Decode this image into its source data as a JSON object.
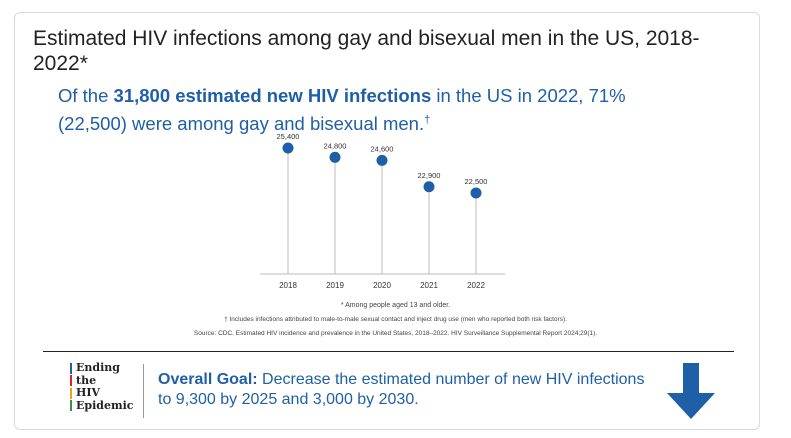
{
  "header": {
    "title": "Estimated HIV infections among gay and bisexual men in the US, 2018-2022*"
  },
  "headline": {
    "prefix": "Of the ",
    "bold": "31,800 estimated new HIV infections",
    "suffix": " in the US in 2022, 71% (22,500) were among gay and bisexual men.",
    "dagger": "†"
  },
  "chart_data": {
    "type": "scatter",
    "style": "lollipop",
    "categories": [
      "2018",
      "2019",
      "2020",
      "2021",
      "2022"
    ],
    "values": [
      25400,
      24800,
      24600,
      22900,
      22500
    ],
    "labels": [
      "25,400",
      "24,800",
      "24,600",
      "22,900",
      "22,500"
    ],
    "color": "#1f5fa8",
    "xlabel": "",
    "ylabel": "",
    "grid": false
  },
  "notes": {
    "age": "* Among people aged 13 and older.",
    "dagger": "† Includes infections attributed to male-to-male sexual contact and inject drug use (men who reported both risk factors).",
    "source": "Source: CDC. Estimated HIV incidence and prevalence in the United States, 2018–2022. HIV Surveillance Supplemental Report 2024;29(1)."
  },
  "logo": {
    "lines": [
      "Ending",
      "the",
      "HIV",
      "Epidemic"
    ],
    "bar_colors": [
      "#1f5fa8",
      "#d6262e",
      "#e8a317",
      "#3a8d4f"
    ]
  },
  "goal": {
    "label": "Overall Goal:",
    "text": " Decrease the estimated number of new HIV infections to 9,300 by 2025 and 3,000 by 2030."
  },
  "icons": {
    "goal_arrow": "arrow-down-icon"
  },
  "colors": {
    "accent": "#1f5fa8"
  }
}
